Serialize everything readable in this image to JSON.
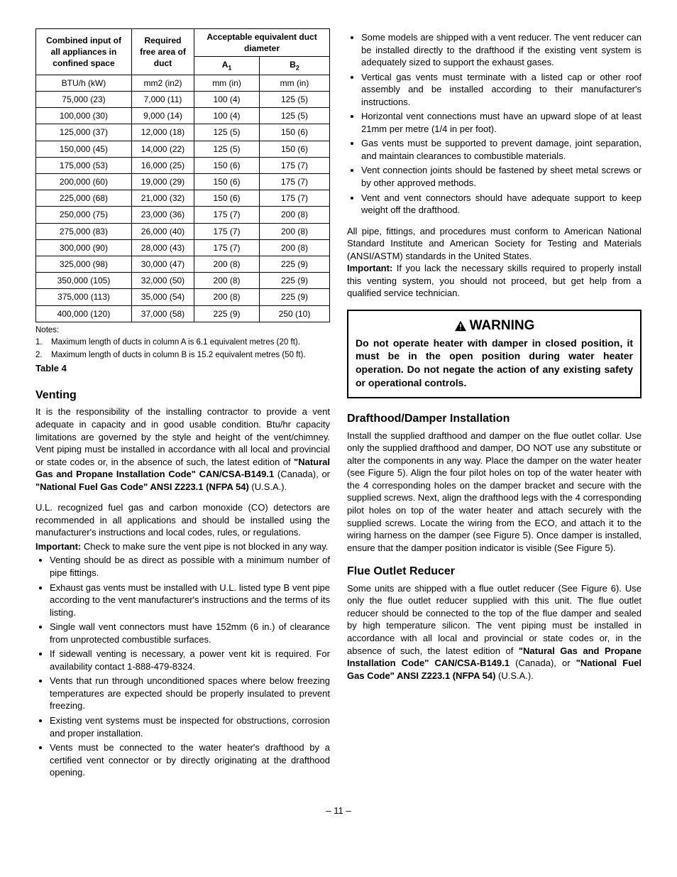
{
  "table": {
    "headers": {
      "col1_l1": "Combined input of",
      "col1_l2": "all appliances in",
      "col1_l3": "confined space",
      "col2_l1": "Required",
      "col2_l2": "free area of",
      "col2_l3": "duct",
      "col34_l1": "Acceptable equivalent duct",
      "col34_l2": "diameter",
      "col3": "A",
      "col3_sub": "1",
      "col4": "B",
      "col4_sub": "2"
    },
    "units": [
      "BTU/h (kW)",
      "mm2 (in2)",
      "mm (in)",
      "mm (in)"
    ],
    "rows": [
      [
        "75,000 (23)",
        "7,000 (11)",
        "100 (4)",
        "125 (5)"
      ],
      [
        "100,000 (30)",
        "9,000 (14)",
        "100 (4)",
        "125 (5)"
      ],
      [
        "125,000 (37)",
        "12,000 (18)",
        "125 (5)",
        "150 (6)"
      ],
      [
        "150,000 (45)",
        "14,000 (22)",
        "125 (5)",
        "150 (6)"
      ],
      [
        "175,000 (53)",
        "16,000 (25)",
        "150 (6)",
        "175 (7)"
      ],
      [
        "200,000 (60)",
        "19,000 (29)",
        "150 (6)",
        "175 (7)"
      ],
      [
        "225,000 (68)",
        "21,000 (32)",
        "150 (6)",
        "175 (7)"
      ],
      [
        "250,000 (75)",
        "23,000 (36)",
        "175 (7)",
        "200 (8)"
      ],
      [
        "275,000 (83)",
        "26,000 (40)",
        "175 (7)",
        "200 (8)"
      ],
      [
        "300,000 (90)",
        "28,000 (43)",
        "175 (7)",
        "200 (8)"
      ],
      [
        "325,000 (98)",
        "30,000 (47)",
        "200 (8)",
        "225 (9)"
      ],
      [
        "350,000 (105)",
        "32,000 (50)",
        "200 (8)",
        "225 (9)"
      ],
      [
        "375,000 (113)",
        "35,000 (54)",
        "200 (8)",
        "225 (9)"
      ],
      [
        "400,000 (120)",
        "37,000 (58)",
        "225 (9)",
        "250 (10)"
      ]
    ],
    "notes_label": "Notes:",
    "notes": [
      "Maximum length of ducts in column A is 6.1 equivalent metres (20 ft).",
      "Maximum length of ducts in column B is 15.2 equivalent metres (50 ft)."
    ],
    "table_label": "Table 4"
  },
  "left": {
    "venting_heading": "Venting",
    "venting_p1a": "It is the responsibility of the installing contractor to provide a vent adequate in capacity and in good usable condition. Btu/hr capacity limitations are governed by the style and height of the vent/chimney. Vent piping must be installed in accordance with all local and provincial or state codes or, in the absence of such, the latest edition of ",
    "venting_p1b": "\"Natural Gas and Propane Installation Code\" CAN/CSA-B149.1",
    "venting_p1c": " (Canada), or ",
    "venting_p1d": "\"National Fuel Gas Code\" ANSI Z223.1 (NFPA 54)",
    "venting_p1e": " (U.S.A.).",
    "venting_p2": "U.L. recognized fuel gas and carbon monoxide (CO) detectors are recommended in all applications and should be installed using the manufacturer's instructions and local codes, rules, or regulations.",
    "venting_p3a": "Important:",
    "venting_p3b": " Check to make sure the vent pipe is not blocked in any way.",
    "venting_bullets": [
      "Venting should be as direct as possible with a minimum number of pipe fittings.",
      "Exhaust gas vents must be installed with U.L. listed type B vent pipe according to the vent manufacturer's instructions and the terms of its listing.",
      "Single wall vent connectors must have 152mm (6 in.) of clearance from unprotected combustible surfaces.",
      "If sidewall venting is necessary, a power vent kit is required. For availability contact 1-888-479-8324.",
      "Vents that run through unconditioned spaces where below freezing temperatures are expected should be properly insulated to prevent freezing.",
      "Existing vent systems must be inspected for obstructions, corrosion and proper installation.",
      "Vents must be connected to the water heater's drafthood by a certified vent connector or by directly originating at the drafthood opening."
    ]
  },
  "right": {
    "top_bullets": [
      "Some models are shipped with a vent reducer. The vent reducer can be installed directly to the drafthood if the existing vent system is adequately sized to support the exhaust gases.",
      "Vertical gas vents must terminate with a listed cap or other roof assembly and be installed according to their manufacturer's instructions.",
      "Horizontal vent connections must have an upward slope of at least 21mm per metre (1/4 in per foot).",
      "Gas vents must be supported to prevent damage, joint separation, and maintain clearances to combustible materials.",
      "Vent connection joints should be fastened by sheet metal screws or by other approved methods.",
      "Vent and vent connectors should have adequate support to keep weight off the drafthood."
    ],
    "ansi_p_a": "All pipe, fittings, and procedures must conform to American National Standard Institute and American Society for Testing and Materials (ANSI/ASTM) standards in the United States.",
    "ansi_p_b": "Important:",
    "ansi_p_c": " If you lack the necessary skills required to properly install this venting system, you should not proceed, but get help from a qualified service technician.",
    "warning_label": "WARNING",
    "warning_body": "Do not operate heater with damper in closed position, it must be in the open position during water heater operation. Do not negate the action of any existing safety or operational controls.",
    "draft_heading": "Drafthood/Damper Installation",
    "draft_p": "Install the supplied drafthood and damper on the flue outlet collar. Use only the supplied drafthood and damper, DO NOT use any substitute or alter the components in any way. Place the damper on the water heater (see Figure 5). Align the four pilot holes on top of the water heater with the 4 corresponding holes on the damper bracket and secure with the supplied screws. Next, align the drafthood legs with the 4 corresponding pilot holes on top of the water heater and attach securely with the supplied screws. Locate the wiring from the ECO, and attach it to the wiring harness on the damper (see Figure 5). Once damper is installed, ensure that the damper position indicator is visible (See Figure 5).",
    "flue_heading": "Flue Outlet Reducer",
    "flue_p_a": "Some units are shipped with a flue outlet reducer (See Figure 6). Use only the flue outlet reducer supplied with this unit. The flue outlet reducer should be connected to the top of the flue damper and sealed by high temperature silicon. The vent piping must be installed in accordance with all local and provincial or state codes or, in the absence of such, the latest edition of ",
    "flue_p_b": "\"Natural Gas and Propane Installation Code\" CAN/CSA-B149.1",
    "flue_p_c": " (Canada), or ",
    "flue_p_d": "\"National Fuel Gas Code\" ANSI Z223.1 (NFPA 54)",
    "flue_p_e": " (U.S.A.)."
  },
  "page_number": "– 11 –"
}
